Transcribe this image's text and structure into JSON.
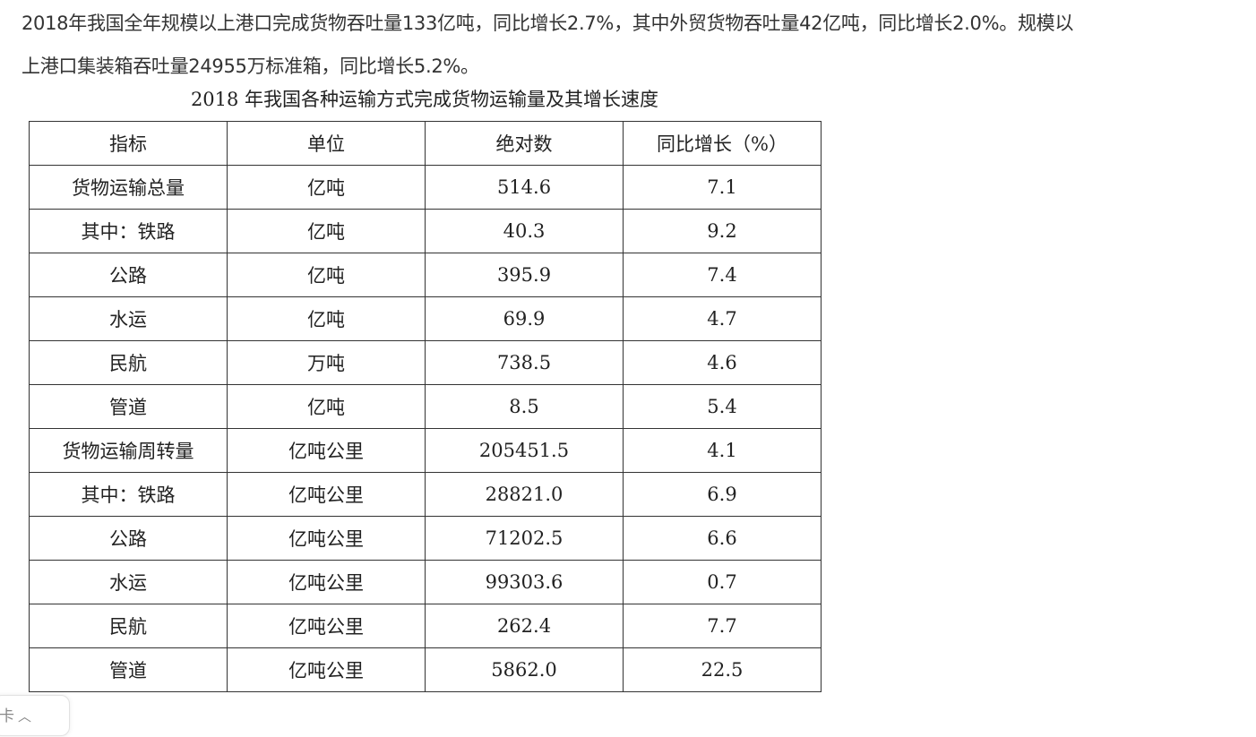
{
  "intro": {
    "line1": "2018年我国全年规模以上港口完成货物吞吐量133亿吨，同比增长2.7%，其中外贸货物吞吐量42亿吨，同比增长2.0%。规模以",
    "line2": "上港口集装箱吞吐量24955万标准箱，同比增长5.2%。"
  },
  "table": {
    "title": "2018 年我国各种运输方式完成货物运输量及其增长速度",
    "headers": [
      "指标",
      "单位",
      "绝对数",
      "同比增长（%）"
    ],
    "rows": [
      [
        "货物运输总量",
        "亿吨",
        "514.6",
        "7.1"
      ],
      [
        "其中：铁路",
        "亿吨",
        "40.3",
        "9.2"
      ],
      [
        "公路",
        "亿吨",
        "395.9",
        "7.4"
      ],
      [
        "水运",
        "亿吨",
        "69.9",
        "4.7"
      ],
      [
        "民航",
        "万吨",
        "738.5",
        "4.6"
      ],
      [
        "管道",
        "亿吨",
        "8.5",
        "5.4"
      ],
      [
        "货物运输周转量",
        "亿吨公里",
        "205451.5",
        "4.1"
      ],
      [
        "其中：铁路",
        "亿吨公里",
        "28821.0",
        "6.9"
      ],
      [
        "公路",
        "亿吨公里",
        "71202.5",
        "6.6"
      ],
      [
        "水运",
        "亿吨公里",
        "99303.6",
        "0.7"
      ],
      [
        "民航",
        "亿吨公里",
        "262.4",
        "7.7"
      ],
      [
        "管道",
        "亿吨公里",
        "5862.0",
        "22.5"
      ]
    ]
  },
  "collapse_tab": {
    "label": "卡",
    "icon": "chevron-up-icon"
  }
}
